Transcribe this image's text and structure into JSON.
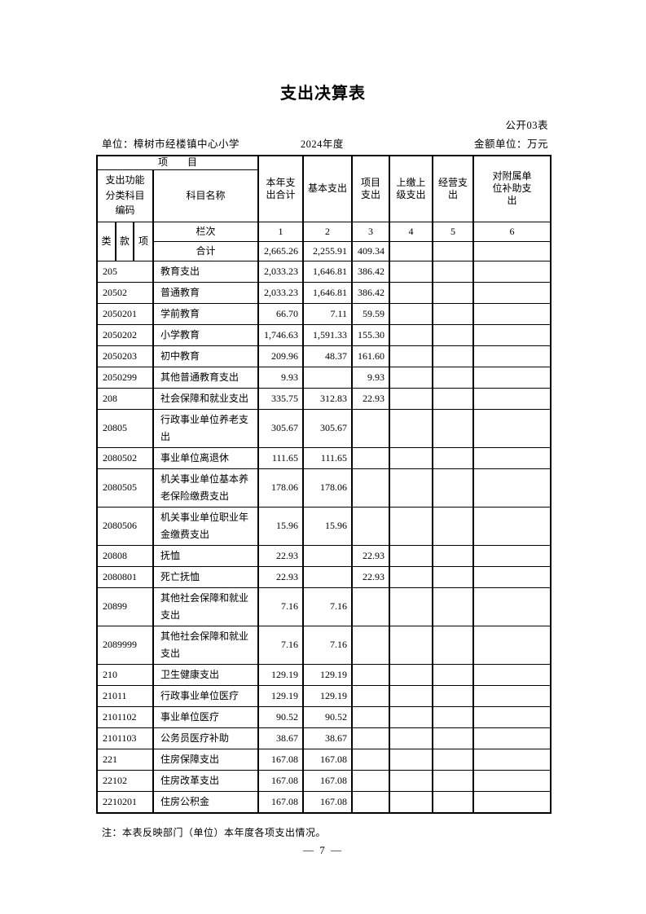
{
  "page": {
    "title": "支出决算表",
    "table_label": "公开03表",
    "unit_label": "单位：樟树市经楼镇中心小学",
    "year_label": "2024年度",
    "amount_unit_label": "金额单位：万元",
    "note": "注：本表反映部门（单位）本年度各项支出情况。",
    "page_number": "— 7 —"
  },
  "table": {
    "header": {
      "project_label": "项　　目",
      "code_label": "支出功能分类科目编码",
      "subject_label": "科目名称",
      "class_label": "类",
      "section_label": "款",
      "item_label": "项",
      "col_labels": [
        "本年支出合计",
        "基本支出",
        "项目支出",
        "上缴上级支出",
        "经营支出",
        "对附属单位补助支出"
      ],
      "rank_label": "栏次",
      "rank_numbers": [
        "1",
        "2",
        "3",
        "4",
        "5",
        "6"
      ],
      "total_label": "合计",
      "total_values": [
        "2,665.26",
        "2,255.91",
        "409.34",
        "",
        "",
        ""
      ]
    },
    "rows": [
      {
        "code": "205",
        "name": "教育支出",
        "values": [
          "2,033.23",
          "1,646.81",
          "386.42",
          "",
          "",
          ""
        ]
      },
      {
        "code": "20502",
        "name": "普通教育",
        "values": [
          "2,033.23",
          "1,646.81",
          "386.42",
          "",
          "",
          ""
        ]
      },
      {
        "code": "2050201",
        "name": "学前教育",
        "values": [
          "66.70",
          "7.11",
          "59.59",
          "",
          "",
          ""
        ]
      },
      {
        "code": "2050202",
        "name": "小学教育",
        "values": [
          "1,746.63",
          "1,591.33",
          "155.30",
          "",
          "",
          ""
        ]
      },
      {
        "code": "2050203",
        "name": "初中教育",
        "values": [
          "209.96",
          "48.37",
          "161.60",
          "",
          "",
          ""
        ]
      },
      {
        "code": "2050299",
        "name": "其他普通教育支出",
        "values": [
          "9.93",
          "",
          "9.93",
          "",
          "",
          ""
        ]
      },
      {
        "code": "208",
        "name": "社会保障和就业支出",
        "values": [
          "335.75",
          "312.83",
          "22.93",
          "",
          "",
          ""
        ]
      },
      {
        "code": "20805",
        "name": "行政事业单位养老支出",
        "values": [
          "305.67",
          "305.67",
          "",
          "",
          "",
          ""
        ]
      },
      {
        "code": "2080502",
        "name": "事业单位离退休",
        "values": [
          "111.65",
          "111.65",
          "",
          "",
          "",
          ""
        ]
      },
      {
        "code": "2080505",
        "name": "机关事业单位基本养老保险缴费支出",
        "values": [
          "178.06",
          "178.06",
          "",
          "",
          "",
          ""
        ]
      },
      {
        "code": "2080506",
        "name": "机关事业单位职业年金缴费支出",
        "values": [
          "15.96",
          "15.96",
          "",
          "",
          "",
          ""
        ]
      },
      {
        "code": "20808",
        "name": "抚恤",
        "values": [
          "22.93",
          "",
          "22.93",
          "",
          "",
          ""
        ]
      },
      {
        "code": "2080801",
        "name": "死亡抚恤",
        "values": [
          "22.93",
          "",
          "22.93",
          "",
          "",
          ""
        ]
      },
      {
        "code": "20899",
        "name": "其他社会保障和就业支出",
        "values": [
          "7.16",
          "7.16",
          "",
          "",
          "",
          ""
        ]
      },
      {
        "code": "2089999",
        "name": "其他社会保障和就业支出",
        "values": [
          "7.16",
          "7.16",
          "",
          "",
          "",
          ""
        ]
      },
      {
        "code": "210",
        "name": "卫生健康支出",
        "values": [
          "129.19",
          "129.19",
          "",
          "",
          "",
          ""
        ]
      },
      {
        "code": "21011",
        "name": "行政事业单位医疗",
        "values": [
          "129.19",
          "129.19",
          "",
          "",
          "",
          ""
        ]
      },
      {
        "code": "2101102",
        "name": "事业单位医疗",
        "values": [
          "90.52",
          "90.52",
          "",
          "",
          "",
          ""
        ]
      },
      {
        "code": "2101103",
        "name": "公务员医疗补助",
        "values": [
          "38.67",
          "38.67",
          "",
          "",
          "",
          ""
        ]
      },
      {
        "code": "221",
        "name": "住房保障支出",
        "values": [
          "167.08",
          "167.08",
          "",
          "",
          "",
          ""
        ]
      },
      {
        "code": "22102",
        "name": "住房改革支出",
        "values": [
          "167.08",
          "167.08",
          "",
          "",
          "",
          ""
        ]
      },
      {
        "code": "2210201",
        "name": "住房公积金",
        "values": [
          "167.08",
          "167.08",
          "",
          "",
          "",
          ""
        ]
      }
    ]
  }
}
